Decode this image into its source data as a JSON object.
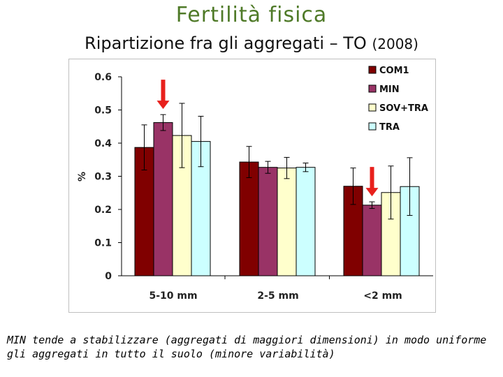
{
  "header": {
    "title": "Fertilità fisica",
    "subtitle": "Ripartizione fra gli aggregati – TO",
    "year": "(2008)"
  },
  "caption": "MIN tende a stabilizzare (aggregati di maggiori dimensioni) in modo uniforme gli aggregati in tutto il suolo (minore variabilità)",
  "colors": {
    "title": "#4f7a28",
    "arrow": "#e8201c"
  },
  "annotations": [
    {
      "type": "arrow",
      "category": "5-10 mm",
      "series": "MIN",
      "icon": "red-down-arrow"
    },
    {
      "type": "arrow",
      "category": "<2 mm",
      "series": "MIN",
      "icon": "red-down-arrow"
    }
  ],
  "chart_data": {
    "type": "bar",
    "title": "",
    "xlabel": "",
    "ylabel": "%",
    "ylim": [
      0,
      0.6
    ],
    "yticks": [
      "0",
      "0.1",
      "0.2",
      "0.3",
      "0.4",
      "0.5",
      "0.6"
    ],
    "categories": [
      "5-10 mm",
      "2-5 mm",
      "<2 mm"
    ],
    "grid": false,
    "legend_position": "top-right",
    "series": [
      {
        "name": "COM1",
        "color": "#800000",
        "values": [
          0.387,
          0.343,
          0.27
        ],
        "errors": [
          0.068,
          0.047,
          0.055
        ]
      },
      {
        "name": "MIN",
        "color": "#993366",
        "values": [
          0.462,
          0.327,
          0.213
        ],
        "errors": [
          0.024,
          0.018,
          0.01
        ]
      },
      {
        "name": "SOV+TRA",
        "color": "#ffffcc",
        "values": [
          0.423,
          0.325,
          0.251
        ],
        "errors": [
          0.097,
          0.032,
          0.08
        ]
      },
      {
        "name": "TRA",
        "color": "#ccffff",
        "values": [
          0.405,
          0.327,
          0.269
        ],
        "errors": [
          0.076,
          0.013,
          0.087
        ]
      }
    ]
  }
}
